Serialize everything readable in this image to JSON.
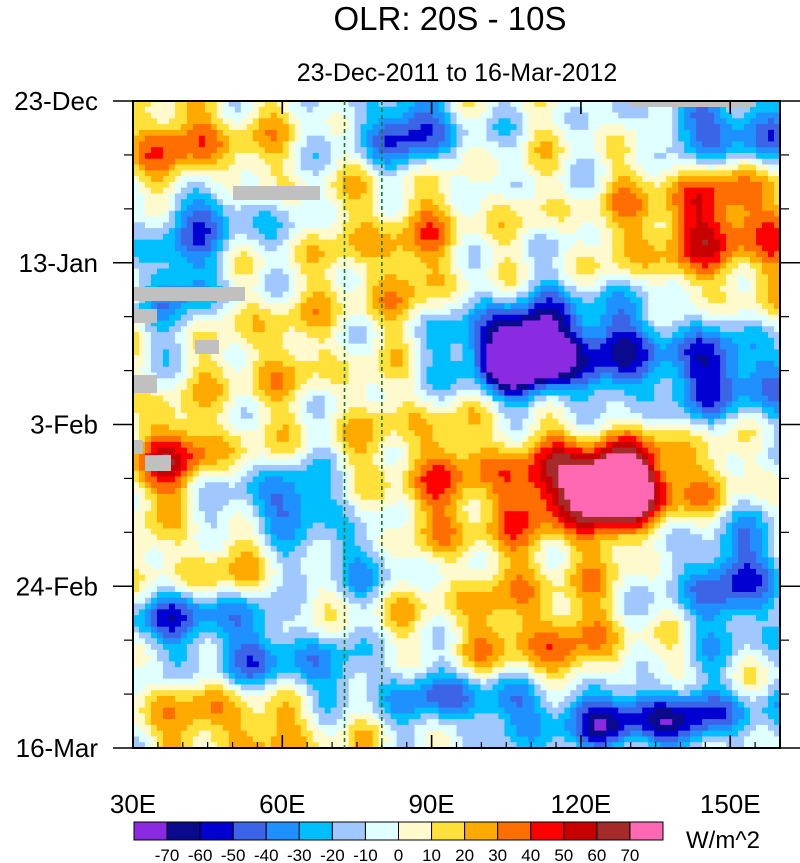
{
  "chart_data": {
    "type": "heatmap",
    "title": "OLR: 20S - 10S",
    "subtitle": "23-Dec-2011 to 16-Mar-2012",
    "x_axis": {
      "min": 30,
      "max": 160,
      "ticks": [
        {
          "value": 30,
          "label": "30E"
        },
        {
          "value": 60,
          "label": "60E"
        },
        {
          "value": 90,
          "label": "90E"
        },
        {
          "value": 120,
          "label": "120E"
        },
        {
          "value": 150,
          "label": "150E"
        }
      ]
    },
    "y_axis": {
      "start_day": 0,
      "end_day": 84,
      "ticks": [
        {
          "day": 0,
          "label": "23-Dec"
        },
        {
          "day": 21,
          "label": "13-Jan"
        },
        {
          "day": 42,
          "label": "3-Feb"
        },
        {
          "day": 63,
          "label": "24-Feb"
        },
        {
          "day": 84,
          "label": "16-Mar"
        }
      ]
    },
    "reference_longitudes": [
      72.5,
      80
    ],
    "missing_data_color": "#c0c0c0",
    "colorbar": {
      "unit_label": "W/m^2",
      "levels": [
        "-70",
        "-60",
        "-50",
        "-40",
        "-30",
        "-20",
        "-10",
        "0",
        "10",
        "20",
        "30",
        "40",
        "50",
        "60",
        "70"
      ],
      "colors": [
        "#8a2be2",
        "#0a0a8c",
        "#0000d2",
        "#3c64e6",
        "#1e90ff",
        "#00bfff",
        "#a0c8ff",
        "#e0ffff",
        "#fffacd",
        "#ffe13a",
        "#ffaa00",
        "#ff6e00",
        "#ff0000",
        "#c80000",
        "#a52a2a",
        "#ff69b4"
      ]
    },
    "anomaly_features": [
      {
        "name": "pos-west-north",
        "lon": 40,
        "day": 8,
        "value": 35,
        "sx": 12,
        "sy": 6
      },
      {
        "name": "pos-west-mid",
        "lon": 45,
        "day": 32,
        "value": 30,
        "sx": 14,
        "sy": 6
      },
      {
        "name": "pos-west-feb",
        "lon": 38,
        "day": 47,
        "value": 45,
        "sx": 8,
        "sy": 4
      },
      {
        "name": "pos-west-late",
        "lon": 55,
        "day": 62,
        "value": 35,
        "sx": 14,
        "sy": 5
      },
      {
        "name": "pos-west-end",
        "lon": 50,
        "day": 80,
        "value": 30,
        "sx": 14,
        "sy": 4
      },
      {
        "name": "pos-central-jan",
        "lon": 85,
        "day": 20,
        "value": 25,
        "sx": 10,
        "sy": 10
      },
      {
        "name": "pos-central-feb",
        "lon": 90,
        "day": 50,
        "value": 25,
        "sx": 12,
        "sy": 8
      },
      {
        "name": "pos-east-jan",
        "lon": 148,
        "day": 16,
        "value": 45,
        "sx": 14,
        "sy": 6
      },
      {
        "name": "pos-east-feb",
        "lon": 125,
        "day": 50,
        "value": 62,
        "sx": 14,
        "sy": 5
      },
      {
        "name": "pos-east-peak",
        "lon": 126,
        "day": 50,
        "value": 74,
        "sx": 6,
        "sy": 2.5
      },
      {
        "name": "pos-east-late",
        "lon": 112,
        "day": 71,
        "value": 30,
        "sx": 14,
        "sy": 7
      },
      {
        "name": "neg-west-jan",
        "lon": 40,
        "day": 26,
        "value": -45,
        "sx": 8,
        "sy": 8
      },
      {
        "name": "neg-west-dec",
        "lon": 45,
        "day": 14,
        "value": -40,
        "sx": 10,
        "sy": 3
      },
      {
        "name": "neg-wave-a",
        "lon": 60,
        "day": 52,
        "value": -45,
        "sx": 12,
        "sy": 3
      },
      {
        "name": "neg-wave-b",
        "lon": 70,
        "day": 60,
        "value": -45,
        "sx": 12,
        "sy": 3
      },
      {
        "name": "neg-wave-c",
        "lon": 45,
        "day": 67,
        "value": -55,
        "sx": 14,
        "sy": 3
      },
      {
        "name": "neg-wave-d",
        "lon": 60,
        "day": 74,
        "value": -40,
        "sx": 12,
        "sy": 3
      },
      {
        "name": "neg-central-dec",
        "lon": 85,
        "day": 4,
        "value": -55,
        "sx": 8,
        "sy": 4
      },
      {
        "name": "neg-east-jan",
        "lon": 115,
        "day": 32,
        "value": -60,
        "sx": 18,
        "sy": 5
      },
      {
        "name": "neg-east-jan-core",
        "lon": 108,
        "day": 33,
        "value": -72,
        "sx": 6,
        "sy": 3
      },
      {
        "name": "neg-east-dec",
        "lon": 150,
        "day": 4,
        "value": -55,
        "sx": 10,
        "sy": 3
      },
      {
        "name": "neg-east-jan-ne",
        "lon": 150,
        "day": 36,
        "value": -45,
        "sx": 10,
        "sy": 4
      },
      {
        "name": "neg-east-mar",
        "lon": 130,
        "day": 80,
        "value": -65,
        "sx": 18,
        "sy": 3
      },
      {
        "name": "neg-east-feb",
        "lon": 150,
        "day": 62,
        "value": -45,
        "sx": 10,
        "sy": 6
      },
      {
        "name": "neg-mid-mar",
        "lon": 95,
        "day": 77,
        "value": -40,
        "sx": 12,
        "sy": 3
      }
    ]
  }
}
